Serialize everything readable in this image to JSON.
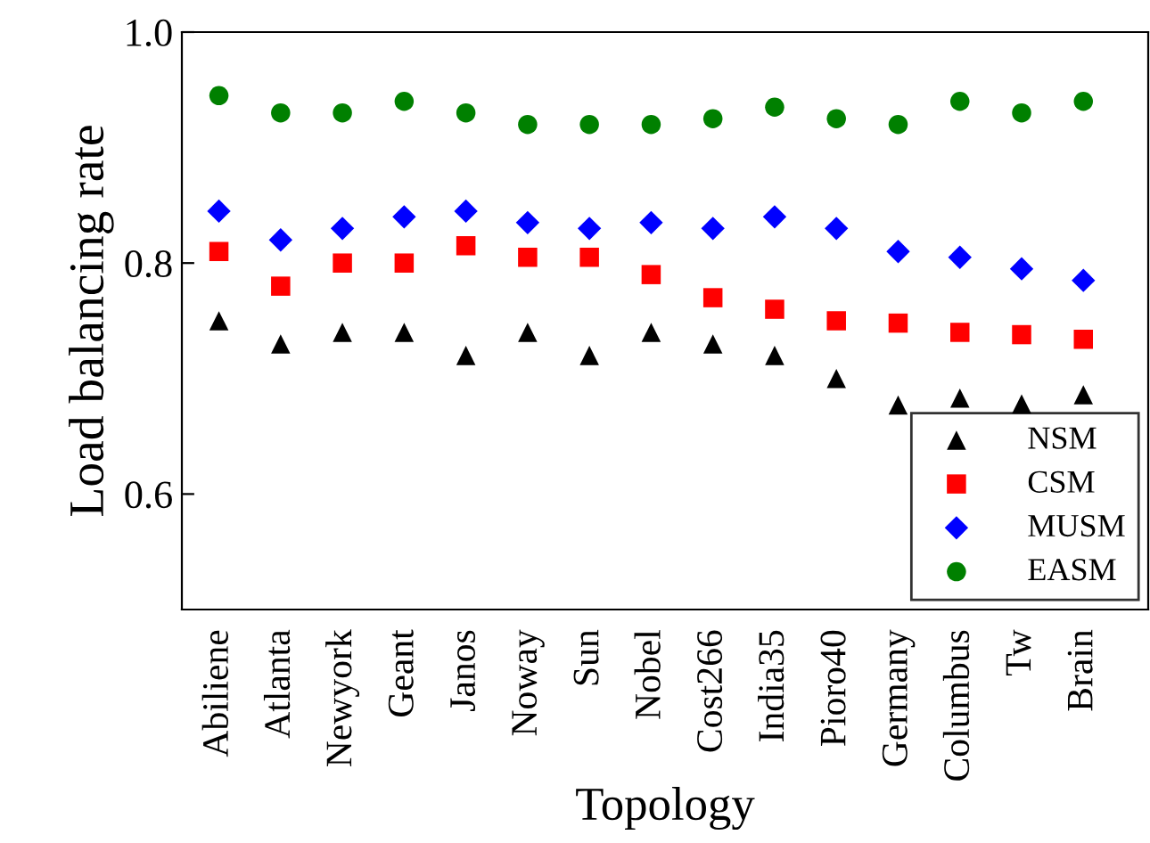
{
  "chart_data": {
    "type": "scatter",
    "xlabel": "Topology",
    "ylabel": "Load balancing rate",
    "categories": [
      "Abiliene",
      "Atlanta",
      "Newyork",
      "Geant",
      "Janos",
      "Noway",
      "Sun",
      "Nobel",
      "Cost266",
      "India35",
      "Pioro40",
      "Germany",
      "Columbus",
      "Tw",
      "Brain"
    ],
    "series": [
      {
        "name": "NSM",
        "color": "#000000",
        "marker": "triangle",
        "values": [
          0.75,
          0.73,
          0.74,
          0.74,
          0.72,
          0.74,
          0.72,
          0.74,
          0.73,
          0.72,
          0.7,
          0.677,
          0.683,
          0.678,
          0.686
        ]
      },
      {
        "name": "CSM",
        "color": "#ff0000",
        "marker": "square",
        "values": [
          0.81,
          0.78,
          0.8,
          0.8,
          0.815,
          0.805,
          0.805,
          0.79,
          0.77,
          0.76,
          0.75,
          0.748,
          0.74,
          0.738,
          0.734
        ]
      },
      {
        "name": "MUSM",
        "color": "#0000ff",
        "marker": "diamond",
        "values": [
          0.845,
          0.82,
          0.83,
          0.84,
          0.845,
          0.835,
          0.83,
          0.835,
          0.83,
          0.84,
          0.83,
          0.81,
          0.805,
          0.795,
          0.785
        ]
      },
      {
        "name": "EASM",
        "color": "#008000",
        "marker": "circle",
        "values": [
          0.945,
          0.93,
          0.93,
          0.94,
          0.93,
          0.92,
          0.92,
          0.92,
          0.925,
          0.935,
          0.925,
          0.92,
          0.94,
          0.93,
          0.94
        ]
      }
    ],
    "ylim": [
      0.5,
      1.0
    ],
    "yticks": [
      {
        "value": 0.6,
        "label": "0.6"
      },
      {
        "value": 0.8,
        "label": "0.8"
      },
      {
        "value": 1.0,
        "label": "1.0"
      }
    ],
    "grid": false,
    "legend": "bottom right"
  }
}
